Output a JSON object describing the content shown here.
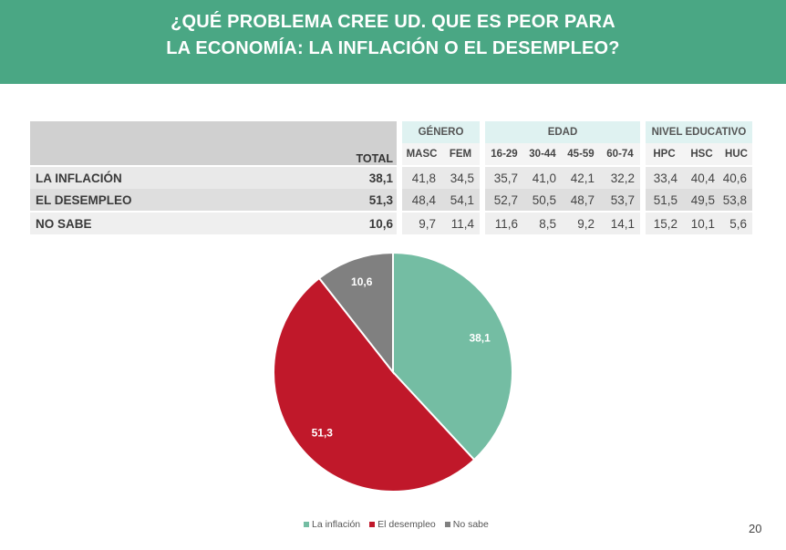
{
  "header": {
    "title_line1": "¿QUÉ PROBLEMA CREE UD. QUE ES PEOR PARA",
    "title_line2": "LA ECONOMÍA: LA INFLACIÓN O EL DESEMPLEO?"
  },
  "table": {
    "total_label": "TOTAL",
    "groups": [
      "GÉNERO",
      "EDAD",
      "NIVEL EDUCATIVO"
    ],
    "columns": [
      "MASC",
      "FEM",
      "16-29",
      "30-44",
      "45-59",
      "60-74",
      "HPC",
      "HSC",
      "HUC"
    ],
    "rows": [
      {
        "label": "LA INFLACIÓN",
        "total": "38,1",
        "values": [
          "41,8",
          "34,5",
          "35,7",
          "41,0",
          "42,1",
          "32,2",
          "33,4",
          "40,4",
          "40,6"
        ]
      },
      {
        "label": "EL DESEMPLEO",
        "total": "51,3",
        "values": [
          "48,4",
          "54,1",
          "52,7",
          "50,5",
          "48,7",
          "53,7",
          "51,5",
          "49,5",
          "53,8"
        ]
      },
      {
        "label": "NO SABE",
        "total": "10,6",
        "values": [
          "9,7",
          "11,4",
          "11,6",
          "8,5",
          "9,2",
          "14,1",
          "15,2",
          "10,1",
          "5,6"
        ]
      }
    ]
  },
  "chart_data": {
    "type": "pie",
    "slices": [
      {
        "name": "La inflación",
        "value": 38.1,
        "label": "38,1",
        "color": "#74bda3"
      },
      {
        "name": "El desempleo",
        "value": 51.3,
        "label": "51,3",
        "color": "#c0182a"
      },
      {
        "name": "No sabe",
        "value": 10.6,
        "label": "10,6",
        "color": "#808080"
      }
    ],
    "legend_position": "bottom"
  },
  "page_number": "20"
}
